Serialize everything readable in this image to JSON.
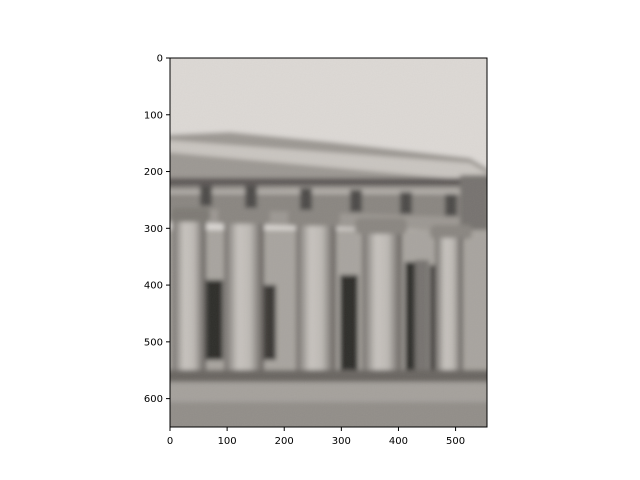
{
  "figure": {
    "image_description_icon": "blurred-grayscale-temple-photo",
    "image_extent": {
      "x": [
        0,
        555
      ],
      "y": [
        0,
        650
      ]
    },
    "x_axis": {
      "ticks": [
        0,
        100,
        200,
        300,
        400,
        500
      ],
      "tick_labels": [
        "0",
        "100",
        "200",
        "300",
        "400",
        "500"
      ]
    },
    "y_axis": {
      "ticks": [
        0,
        100,
        200,
        300,
        400,
        500,
        600
      ],
      "tick_labels": [
        "0",
        "100",
        "200",
        "300",
        "400",
        "500",
        "600"
      ],
      "inverted": true
    },
    "colors": {
      "sky": "#dedad6",
      "stone_light": "#b9b5b0",
      "stone_mid": "#8f8b86",
      "stone_dark": "#4a4744",
      "shadow": "#2e2c2a"
    }
  }
}
